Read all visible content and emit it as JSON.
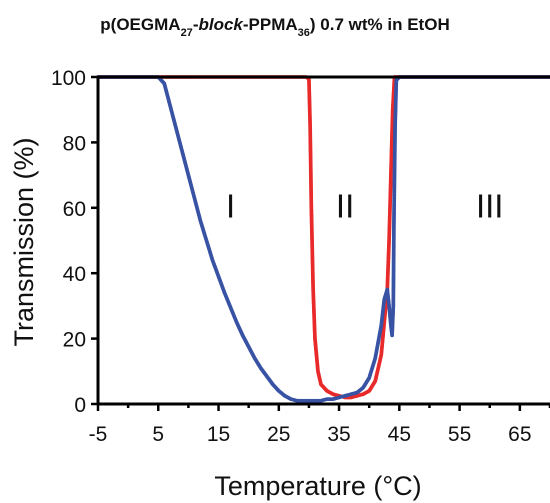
{
  "chart_data": {
    "type": "scatter",
    "title_parts": [
      {
        "text": "p(OEGMA",
        "style": "normal",
        "shift": "none"
      },
      {
        "text": "27",
        "style": "normal",
        "shift": "sub"
      },
      {
        "text": "-",
        "style": "normal",
        "shift": "none"
      },
      {
        "text": "block",
        "style": "italic",
        "shift": "none"
      },
      {
        "text": "-PPMA",
        "style": "normal",
        "shift": "none"
      },
      {
        "text": "36",
        "style": "normal",
        "shift": "sub"
      },
      {
        "text": ") 0.7 wt% in EtOH",
        "style": "normal",
        "shift": "none"
      }
    ],
    "xlabel": "Temperature (°C)",
    "ylabel": "Transmission  (%)",
    "xlim": [
      -5,
      70
    ],
    "ylim": [
      0,
      100
    ],
    "x_ticks": [
      -5,
      5,
      15,
      25,
      35,
      45,
      55,
      65
    ],
    "y_ticks": [
      0,
      20,
      40,
      60,
      80,
      100
    ],
    "grid": false,
    "legend": "none",
    "region_labels": [
      {
        "text": "I",
        "x": 17,
        "y": 57
      },
      {
        "text": "II",
        "x": 36,
        "y": 57
      },
      {
        "text": "III",
        "x": 60,
        "y": 57
      }
    ],
    "series": [
      {
        "color": "#e82a2a",
        "points": [
          [
            -5,
            100
          ],
          [
            6,
            100
          ],
          [
            10,
            100
          ],
          [
            20,
            100
          ],
          [
            29.5,
            100
          ],
          [
            30,
            99.5
          ],
          [
            30.2,
            85
          ],
          [
            30.4,
            60
          ],
          [
            30.7,
            35
          ],
          [
            31,
            20
          ],
          [
            31.5,
            10
          ],
          [
            32,
            6
          ],
          [
            33,
            4
          ],
          [
            34,
            3
          ],
          [
            35,
            2.5
          ],
          [
            36,
            2
          ],
          [
            37,
            2
          ],
          [
            38,
            2.5
          ],
          [
            39,
            3
          ],
          [
            40,
            4
          ],
          [
            41,
            7
          ],
          [
            42,
            15
          ],
          [
            42.5,
            25
          ],
          [
            43,
            35
          ],
          [
            43.3,
            50
          ],
          [
            43.6,
            70
          ],
          [
            43.9,
            90
          ],
          [
            44.2,
            100
          ],
          [
            50,
            100
          ],
          [
            60,
            100
          ],
          [
            70,
            100
          ]
        ]
      },
      {
        "color": "#3852a4",
        "points": [
          [
            -5,
            100
          ],
          [
            5,
            100
          ],
          [
            6,
            98
          ],
          [
            7,
            91
          ],
          [
            8,
            84
          ],
          [
            9,
            77
          ],
          [
            10,
            70
          ],
          [
            11,
            63
          ],
          [
            12,
            56
          ],
          [
            13,
            50
          ],
          [
            14,
            44
          ],
          [
            15,
            39
          ],
          [
            16,
            34
          ],
          [
            17,
            29.5
          ],
          [
            18,
            25
          ],
          [
            19,
            21
          ],
          [
            20,
            17.5
          ],
          [
            21,
            14
          ],
          [
            22,
            11
          ],
          [
            23,
            8.5
          ],
          [
            24,
            6
          ],
          [
            25,
            4
          ],
          [
            26,
            2.5
          ],
          [
            27,
            1.5
          ],
          [
            28,
            1
          ],
          [
            29,
            1
          ],
          [
            30,
            1
          ],
          [
            31,
            1
          ],
          [
            32,
            1
          ],
          [
            33,
            1.5
          ],
          [
            34,
            1.5
          ],
          [
            35,
            2
          ],
          [
            36,
            2.5
          ],
          [
            37,
            3
          ],
          [
            38,
            3.5
          ],
          [
            39,
            5
          ],
          [
            40,
            8
          ],
          [
            41,
            14
          ],
          [
            42,
            24
          ],
          [
            42.5,
            32
          ],
          [
            43,
            35
          ],
          [
            43.3,
            30
          ],
          [
            43.6,
            24
          ],
          [
            43.8,
            21
          ],
          [
            44,
            30
          ],
          [
            44.1,
            55
          ],
          [
            44.3,
            85
          ],
          [
            44.5,
            99
          ],
          [
            45,
            100
          ],
          [
            55,
            100
          ],
          [
            70,
            100
          ]
        ]
      }
    ]
  }
}
